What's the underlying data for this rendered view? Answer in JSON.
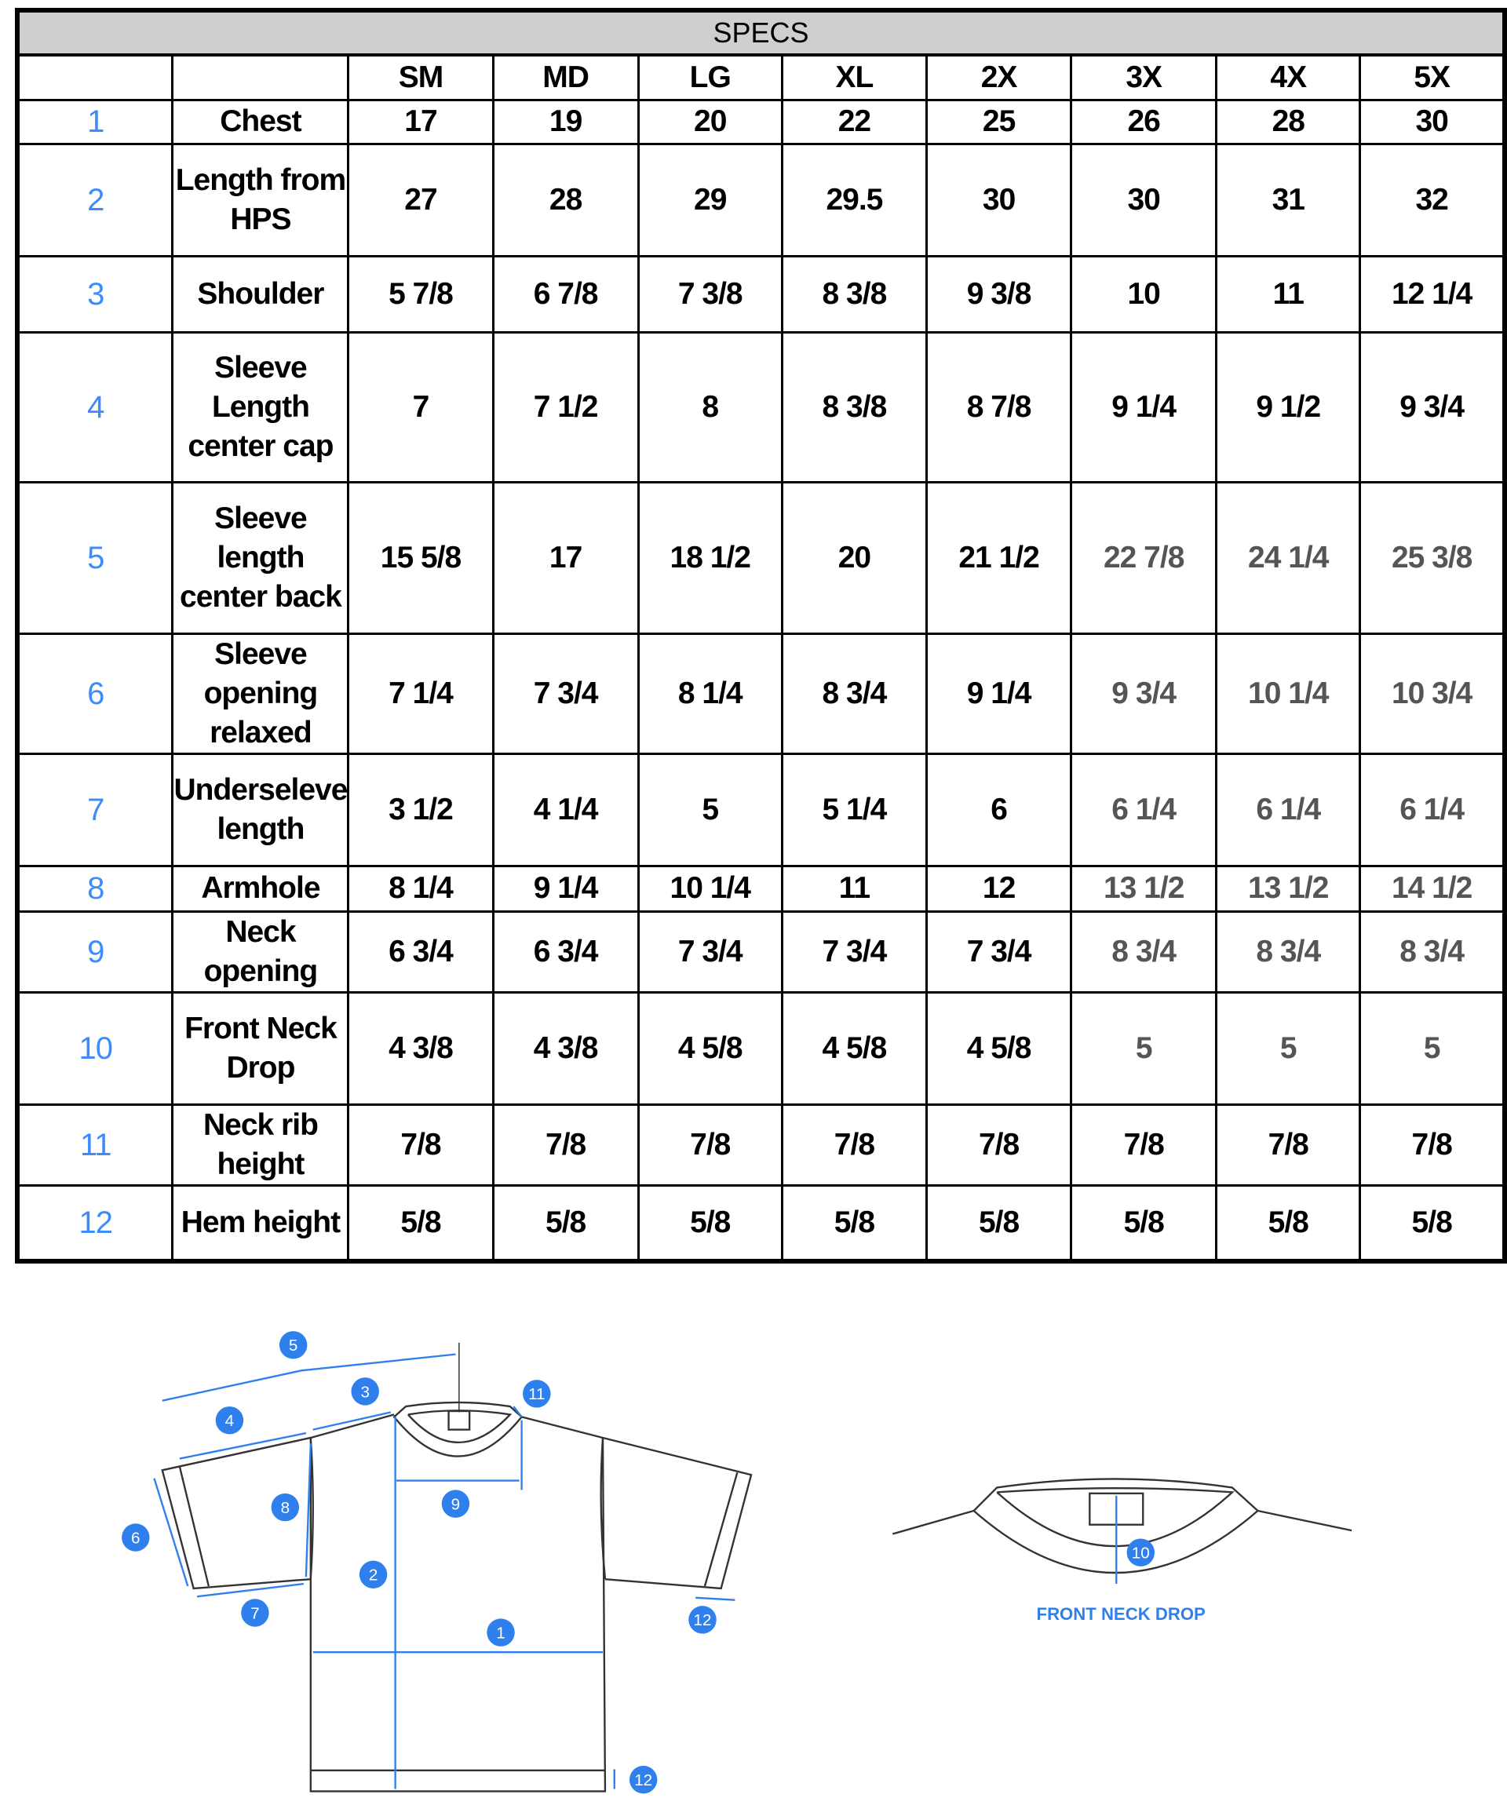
{
  "table": {
    "title": "SPECS",
    "sizes": [
      "SM",
      "MD",
      "LG",
      "XL",
      "2X",
      "3X",
      "4X",
      "5X"
    ],
    "muted_color": "#555555",
    "number_color": "#3d8bfd",
    "rows": [
      {
        "num": "1",
        "label": "Chest",
        "values": [
          "17",
          "19",
          "20",
          "22",
          "25",
          "26",
          "28",
          "30"
        ],
        "muted_sizes": []
      },
      {
        "num": "2",
        "label": "Length from HPS",
        "values": [
          "27",
          "28",
          "29",
          "29.5",
          "30",
          "30",
          "31",
          "32"
        ],
        "muted_sizes": []
      },
      {
        "num": "3",
        "label": "Shoulder",
        "values": [
          "5 7/8",
          "6 7/8",
          "7 3/8",
          "8 3/8",
          "9 3/8",
          "10",
          "11",
          "12 1/4"
        ],
        "muted_sizes": []
      },
      {
        "num": "4",
        "label": "Sleeve Length center cap",
        "values": [
          "7",
          "7 1/2",
          "8",
          "8 3/8",
          "8 7/8",
          "9 1/4",
          "9 1/2",
          "9 3/4"
        ],
        "muted_sizes": []
      },
      {
        "num": "5",
        "label": "Sleeve length center back",
        "values": [
          "15 5/8",
          "17",
          "18 1/2",
          "20",
          "21 1/2",
          "22 7/8",
          "24 1/4",
          "25 3/8"
        ],
        "muted_sizes": [
          "3X",
          "4X",
          "5X"
        ]
      },
      {
        "num": "6",
        "label": "Sleeve opening relaxed",
        "values": [
          "7 1/4",
          "7 3/4",
          "8 1/4",
          "8 3/4",
          "9 1/4",
          "9 3/4",
          "10 1/4",
          "10 3/4"
        ],
        "muted_sizes": [
          "3X",
          "4X",
          "5X"
        ]
      },
      {
        "num": "7",
        "label": "Underseleve length",
        "values": [
          "3 1/2",
          "4 1/4",
          "5",
          "5 1/4",
          "6",
          "6 1/4",
          "6 1/4",
          "6 1/4"
        ],
        "muted_sizes": [
          "3X",
          "4X",
          "5X"
        ]
      },
      {
        "num": "8",
        "label": "Armhole",
        "values": [
          "8 1/4",
          "9 1/4",
          "10 1/4",
          "11",
          "12",
          "13 1/2",
          "13 1/2",
          "14 1/2"
        ],
        "muted_sizes": [
          "3X",
          "4X",
          "5X"
        ]
      },
      {
        "num": "9",
        "label": "Neck opening",
        "values": [
          "6 3/4",
          "6 3/4",
          "7 3/4",
          "7 3/4",
          "7 3/4",
          "8 3/4",
          "8 3/4",
          "8 3/4"
        ],
        "muted_sizes": [
          "3X",
          "4X",
          "5X"
        ]
      },
      {
        "num": "10",
        "label": "Front Neck Drop",
        "values": [
          "4 3/8",
          "4 3/8",
          "4 5/8",
          "4 5/8",
          "4 5/8",
          "5",
          "5",
          "5"
        ],
        "muted_sizes": [
          "3X",
          "4X",
          "5X"
        ]
      },
      {
        "num": "11",
        "label": "Neck rib height",
        "values": [
          "7/8",
          "7/8",
          "7/8",
          "7/8",
          "7/8",
          "7/8",
          "7/8",
          "7/8"
        ],
        "muted_sizes": []
      },
      {
        "num": "12",
        "label": "Hem height",
        "values": [
          "5/8",
          "5/8",
          "5/8",
          "5/8",
          "5/8",
          "5/8",
          "5/8",
          "5/8"
        ],
        "muted_sizes": []
      }
    ]
  },
  "diagram": {
    "accent_color": "#2f80ed",
    "markers": [
      "5",
      "3",
      "11",
      "4",
      "8",
      "6",
      "9",
      "2",
      "7",
      "1",
      "12",
      "12",
      "10"
    ],
    "neck_drop_caption": "FRONT NECK DROP"
  }
}
